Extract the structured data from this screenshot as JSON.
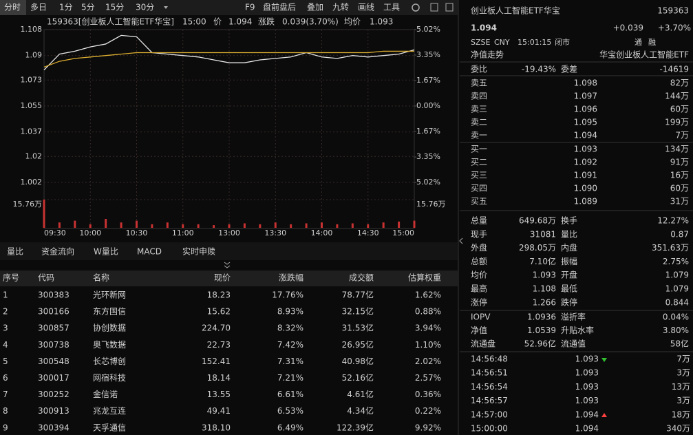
{
  "toolbar": {
    "left": [
      "分时",
      "多日",
      "1分",
      "5分",
      "15分",
      "30分"
    ],
    "right": [
      "F9",
      "盘前盘后",
      "叠加",
      "九转",
      "画线",
      "工具"
    ]
  },
  "chart_data": {
    "type": "line",
    "title": "159363[创业板人工智能ETF华宝]",
    "time": "15:00",
    "price": "1.094",
    "change_label": "涨跌",
    "change": "0.039(3.70%)",
    "avg_price": "1.093",
    "categories": [
      "09:30",
      null,
      null,
      "10:00",
      null,
      null,
      "10:30",
      null,
      null,
      "11:00",
      null,
      null,
      "13:00",
      null,
      null,
      "13:30",
      null,
      null,
      "14:00",
      null,
      null,
      "14:30",
      null,
      null,
      "15:00"
    ],
    "series": [
      {
        "name": "价",
        "color": "#e8e8e8",
        "values": [
          1.08,
          1.091,
          1.093,
          1.096,
          1.098,
          1.104,
          1.103,
          1.092,
          1.091,
          1.09,
          1.089,
          1.087,
          1.085,
          1.085,
          1.087,
          1.088,
          1.089,
          1.092,
          1.089,
          1.088,
          1.09,
          1.089,
          1.09,
          1.091,
          1.094
        ]
      },
      {
        "name": "均价",
        "color": "#e0b030",
        "values": [
          1.082,
          1.086,
          1.088,
          1.089,
          1.09,
          1.091,
          1.092,
          1.092,
          1.092,
          1.092,
          1.092,
          1.092,
          1.092,
          1.092,
          1.092,
          1.092,
          1.092,
          1.092,
          1.092,
          1.092,
          1.092,
          1.092,
          1.093,
          1.093,
          1.093
        ]
      }
    ],
    "ylim": [
      1.002,
      1.108
    ],
    "yticks": [
      1.108,
      1.09,
      1.073,
      1.055,
      1.037,
      1.02,
      1.002
    ],
    "y2lim": [
      -5.02,
      5.02
    ],
    "y2ticks": [
      {
        "value": 5.02,
        "label": "5.02%"
      },
      {
        "value": 3.35,
        "label": "3.35%"
      },
      {
        "value": 1.67,
        "label": "1.67%"
      },
      {
        "value": 0,
        "label": "0.00%"
      },
      {
        "value": -1.67,
        "label": "1.67%"
      },
      {
        "value": -3.35,
        "label": "3.35%"
      },
      {
        "value": -5.02,
        "label": "5.02%"
      }
    ],
    "grid": true,
    "volume": {
      "color": "#c83232",
      "ylim": [
        0,
        15.76
      ],
      "yticks": [
        {
          "value": 15.76,
          "label": "15.76万"
        }
      ],
      "values": [
        15.76,
        3,
        4,
        2,
        5,
        3,
        4,
        2,
        3,
        2,
        2,
        1.5,
        2,
        2.5,
        2,
        3,
        2,
        2.5,
        3,
        2,
        2.5,
        2,
        3,
        3.5,
        4
      ]
    }
  },
  "tabs": [
    "量比",
    "资金流向",
    "W量比",
    "MACD",
    "实时申赎"
  ],
  "table": {
    "headers": [
      "序号",
      "代码",
      "名称",
      "现价",
      "涨跌幅",
      "成交额",
      "估算权重"
    ],
    "rows": [
      [
        "1",
        "300383",
        "光环新网",
        "18.23",
        "17.76%",
        "78.77亿",
        "1.62%"
      ],
      [
        "2",
        "300166",
        "东方国信",
        "15.62",
        "8.93%",
        "32.15亿",
        "0.88%"
      ],
      [
        "3",
        "300857",
        "协创数据",
        "224.70",
        "8.32%",
        "31.53亿",
        "3.94%"
      ],
      [
        "4",
        "300738",
        "奥飞数据",
        "22.73",
        "7.42%",
        "26.95亿",
        "1.10%"
      ],
      [
        "5",
        "300548",
        "长芯博创",
        "152.41",
        "7.31%",
        "40.98亿",
        "2.02%"
      ],
      [
        "6",
        "300017",
        "网宿科技",
        "18.14",
        "7.21%",
        "52.16亿",
        "2.57%"
      ],
      [
        "7",
        "300252",
        "金信诺",
        "13.55",
        "6.61%",
        "4.61亿",
        "0.36%"
      ],
      [
        "8",
        "300913",
        "兆龙互连",
        "49.41",
        "6.53%",
        "4.34亿",
        "0.22%"
      ],
      [
        "9",
        "300394",
        "天孚通信",
        "318.10",
        "6.49%",
        "122.39亿",
        "9.92%"
      ]
    ]
  },
  "quote": {
    "name": "创业板人工智能ETF华宝",
    "code": "159363",
    "price": "1.094",
    "change": "+0.039",
    "change_pct": "+3.70%",
    "info": [
      "SZSE",
      "CNY",
      "15:01:15",
      "闭市"
    ],
    "flags": [
      "通",
      "融"
    ],
    "nav_trend": "净值走势",
    "fund_name": "华宝创业板人工智能ETF"
  },
  "order_book": {
    "ratio_label": "委比",
    "ratio": "-19.43%",
    "diff_label": "委差",
    "diff": "-14619",
    "sells": [
      [
        "卖五",
        "1.098",
        "82万"
      ],
      [
        "卖四",
        "1.097",
        "144万"
      ],
      [
        "卖三",
        "1.096",
        "60万"
      ],
      [
        "卖二",
        "1.095",
        "199万"
      ],
      [
        "卖一",
        "1.094",
        "7万"
      ]
    ],
    "buys": [
      [
        "买一",
        "1.093",
        "134万"
      ],
      [
        "买二",
        "1.092",
        "91万"
      ],
      [
        "买三",
        "1.091",
        "16万"
      ],
      [
        "买四",
        "1.090",
        "60万"
      ],
      [
        "买五",
        "1.089",
        "31万"
      ]
    ]
  },
  "stats": [
    [
      {
        "label": "总量",
        "value": "649.68万",
        "color": "#e8e8e8"
      },
      {
        "label": "换手",
        "value": "12.27%",
        "color": "#e8e8e8"
      }
    ],
    [
      {
        "label": "现手",
        "value": "31081",
        "color": "#e8e8e8"
      },
      {
        "label": "量比",
        "value": "0.87",
        "color": "#e8e8e8"
      }
    ],
    [
      {
        "label": "外盘",
        "value": "298.05万",
        "color": "#ff4040"
      },
      {
        "label": "内盘",
        "value": "351.63万",
        "color": "#30c030"
      }
    ],
    [
      {
        "label": "总额",
        "value": "7.10亿",
        "color": "#e8e8e8"
      },
      {
        "label": "振幅",
        "value": "2.75%",
        "color": "#e8e8e8"
      }
    ],
    [
      {
        "label": "均价",
        "value": "1.093",
        "color": "#ff4040"
      },
      {
        "label": "开盘",
        "value": "1.079",
        "color": "#ff4040"
      }
    ],
    [
      {
        "label": "最高",
        "value": "1.108",
        "color": "#ff4040"
      },
      {
        "label": "最低",
        "value": "1.079",
        "color": "#ff4040"
      }
    ],
    [
      {
        "label": "涨停",
        "value": "1.266",
        "color": "#ff4040"
      },
      {
        "label": "跌停",
        "value": "0.844",
        "color": "#30c030"
      }
    ]
  ],
  "nav_stats": [
    [
      {
        "label": "IOPV",
        "value": "1.0936",
        "color": "#e8e8e8"
      },
      {
        "label": "溢折率",
        "value": "0.04%",
        "color": "#ff4040"
      }
    ],
    [
      {
        "label": "净值",
        "value": "1.0539",
        "color": "#ff4040"
      },
      {
        "label": "升贴水率",
        "value": "3.80%",
        "color": "#ff4040"
      }
    ],
    [
      {
        "label": "流通盘",
        "value": "52.96亿",
        "color": "#e8e8e8"
      },
      {
        "label": "流通值",
        "value": "58亿",
        "color": "#e8e8e8"
      }
    ]
  ],
  "trades": [
    {
      "time": "14:56:48",
      "price": "1.093",
      "volume": "7万",
      "color": "#30c030"
    },
    {
      "time": "14:56:51",
      "price": "1.093",
      "volume": "3万",
      "color": "#ff4040"
    },
    {
      "time": "14:56:54",
      "price": "1.093",
      "volume": "13万",
      "color": "#30c030"
    },
    {
      "time": "14:56:57",
      "price": "1.093",
      "volume": "3万",
      "color": "#ff4040"
    },
    {
      "time": "14:57:00",
      "price": "1.094",
      "volume": "18万",
      "color": "#ff4040"
    },
    {
      "time": "15:00:00",
      "price": "1.094",
      "volume": "340万",
      "color": "#30c030"
    }
  ]
}
